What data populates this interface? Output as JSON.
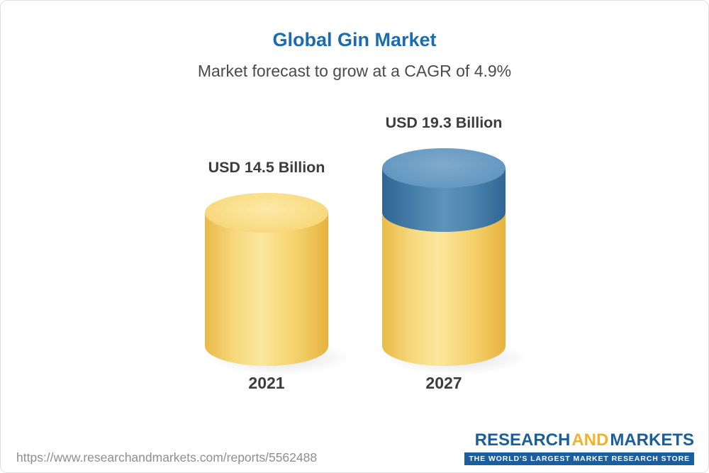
{
  "title": "Global Gin Market",
  "subtitle": "Market forecast to grow at a CAGR of 4.9%",
  "chart_data": {
    "type": "bar",
    "chart_style": "3d-cylinder",
    "title": "Global Gin Market",
    "subtitle": "Market forecast to grow at a CAGR of 4.9%",
    "cagr_percent": 4.9,
    "categories": [
      "2021",
      "2027"
    ],
    "values": [
      14.5,
      19.3
    ],
    "value_labels": [
      "USD 14.5 Billion",
      "USD 19.3 Billion"
    ],
    "unit": "USD Billion",
    "series": [
      {
        "name": "base",
        "color": "#f3cb62",
        "values": [
          14.5,
          14.5
        ]
      },
      {
        "name": "growth",
        "color": "#4a7da9",
        "values": [
          0,
          4.8
        ]
      }
    ],
    "ylim": [
      0,
      20
    ],
    "grid": false,
    "legend": false
  },
  "footer": {
    "url": "https://www.researchandmarkets.com/reports/5562488",
    "logo": {
      "research": "RESEARCH",
      "and": "AND",
      "markets": "MARKETS",
      "tagline": "THE WORLD'S LARGEST MARKET RESEARCH STORE"
    }
  },
  "colors": {
    "title_blue": "#1b6bb0",
    "bar_yellow": "#f3cb62",
    "bar_blue": "#4a7da9",
    "logo_blue": "#1b5e9e",
    "logo_gold": "#f3b229"
  }
}
